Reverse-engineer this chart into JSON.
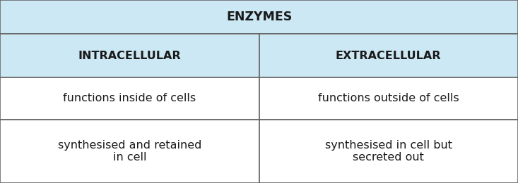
{
  "title": "ENZYMES",
  "col1_header": "INTRACELLULAR",
  "col2_header": "EXTRACELLULAR",
  "row1_col1": "functions inside of cells",
  "row1_col2": "functions outside of cells",
  "row2_col1": "synthesised and retained\nin cell",
  "row2_col2": "synthesised in cell but\nsecreted out",
  "header_bg": "#cce8f4",
  "cell_bg": "#ffffff",
  "border_color": "#666666",
  "title_fontsize": 12.5,
  "header_fontsize": 11.5,
  "cell_fontsize": 11.5,
  "text_color": "#1a1a1a",
  "fig_width": 7.33,
  "fig_height": 2.6
}
